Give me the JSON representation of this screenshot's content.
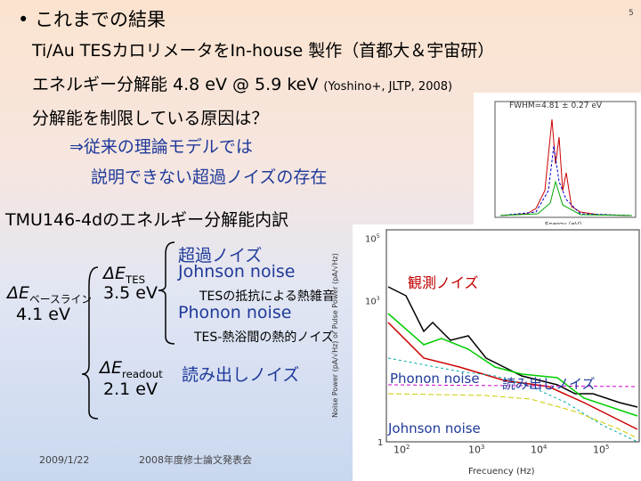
{
  "slide": {
    "title": "これまでの結果",
    "lines": [
      "Ti/Au TESカロリメータをIn-house 製作（首都大＆宇宙研）",
      "エネルギー分解能 4.8 eV @ 5.9 keV",
      "分解能を制限している原因は？",
      "⇒従来の理論モデルでは",
      "説明できない超過ノイズの存在"
    ],
    "reference": "(Yoshino+, JLTP, 2008)",
    "breakdown_title": "TMU146-4dのエネルギー分解能内訳",
    "baseline": {
      "main": "ΔE",
      "sub": "ベースライン",
      "value": "4.1 eV"
    },
    "tes": {
      "main": "ΔE",
      "sub": "TES",
      "value": "3.5 eV"
    },
    "readout": {
      "main": "ΔE",
      "sub": "readout",
      "value": "2.1 eV"
    },
    "excess_noise": "超過ノイズ",
    "johnson": "Johnson noise",
    "johnson_desc": "TESの抵抗による熱雑音",
    "phonon": "Phonon noise",
    "phonon_desc": "TES-熱浴間の熱的ノイズ",
    "readout_noise": "読み出しノイズ",
    "plot": {
      "observed": "観測ノイズ",
      "phonon": "Phonon noise",
      "readout": "読み出しノイズ",
      "johnson": "Johnson noise",
      "xlabel": "Frecuency (Hz)",
      "ylabel": "Noise Power (pA/√Hz) or Pulse Power (pA/√Hz)",
      "xticks": [
        {
          "base": "10",
          "exp": "2"
        },
        {
          "base": "10",
          "exp": "3"
        },
        {
          "base": "10",
          "exp": "4"
        },
        {
          "base": "10",
          "exp": "5"
        }
      ],
      "yticks": [
        "1",
        {
          "base": "10",
          "exp": "3"
        },
        {
          "base": "10",
          "exp": "5"
        }
      ]
    },
    "inset": {
      "label": "FWHM=4.81 ± 0.27 eV",
      "xlabel": "Energy (eV)"
    },
    "footer": {
      "date": "2009/1/22",
      "event": "2008年度修士論文発表会",
      "page": "5"
    }
  }
}
